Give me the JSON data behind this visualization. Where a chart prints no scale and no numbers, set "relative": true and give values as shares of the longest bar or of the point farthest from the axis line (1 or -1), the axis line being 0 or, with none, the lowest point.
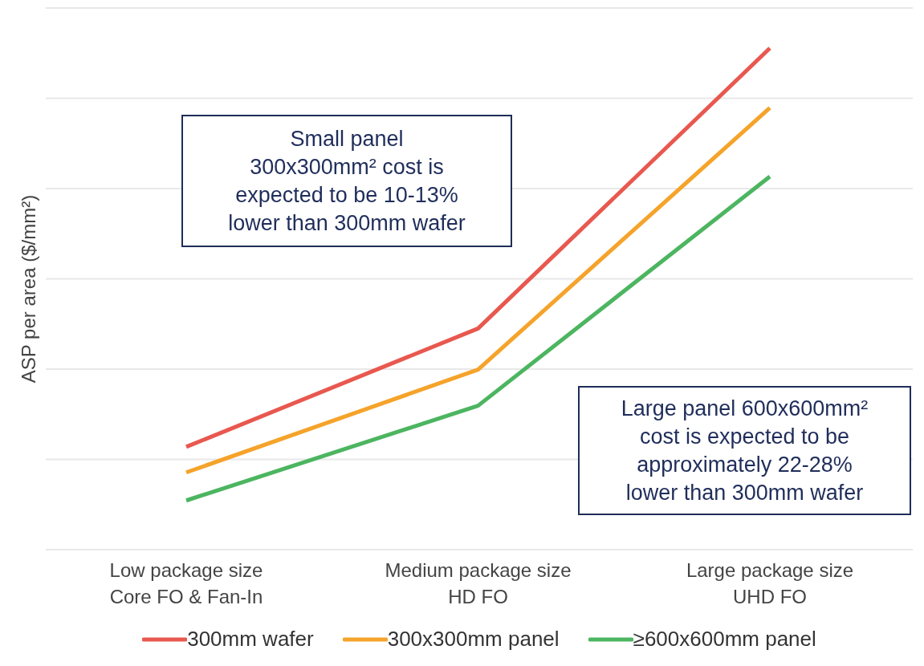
{
  "chart_data": {
    "type": "line",
    "relative": true,
    "ylabel": "ASP per area ($/mm²)",
    "categories": [
      "Low package size\nCore FO & Fan-In",
      "Medium package size\nHD FO",
      "Large package size\nUHD FO"
    ],
    "series": [
      {
        "name": "300mm wafer",
        "color": "#e8584f",
        "values": [
          0.205,
          0.441,
          1
        ]
      },
      {
        "name": "300x300mm panel",
        "color": "#f5a32a",
        "values": [
          0.154,
          0.359,
          0.881
        ]
      },
      {
        "name": "≥600x600mm panel",
        "color": "#4cb560",
        "values": [
          0.098,
          0.287,
          0.744
        ]
      }
    ],
    "annotations": [
      "Small panel\n300x300mm² cost is\nexpected to be 10-13%\nlower than 300mm wafer",
      "Large panel 600x600mm²\ncost is expected to be\napproximately 22-28%\nlower than 300mm wafer"
    ],
    "grid": "y",
    "legend": "bottom",
    "marker": "none",
    "line_style": "solid"
  }
}
